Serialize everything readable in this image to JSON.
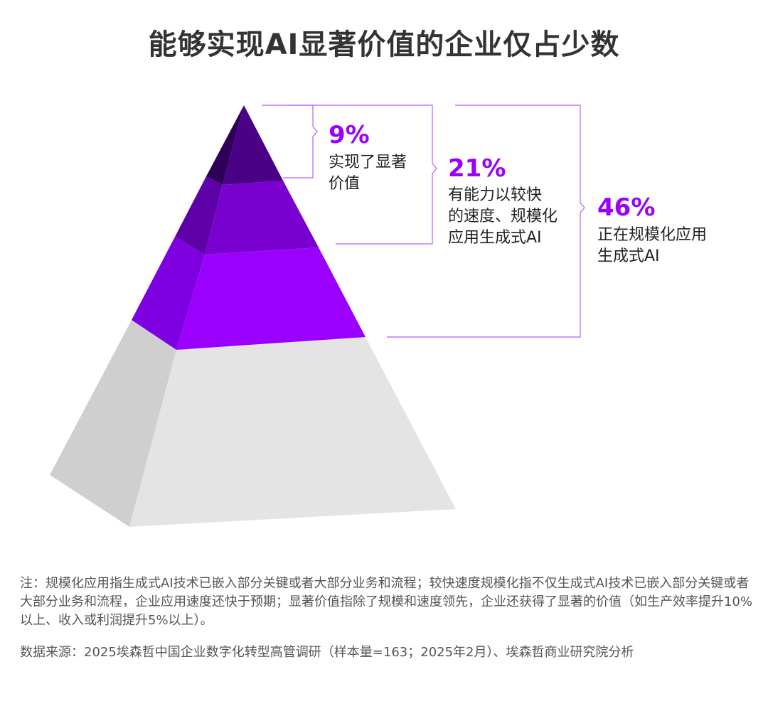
{
  "title": "能够实现AI显著价值的企业仅占少数",
  "levels": [
    {
      "percent": "9%",
      "description": [
        "实现了显著",
        "价值"
      ]
    },
    {
      "percent": "21%",
      "description": [
        "有能力以较快",
        "的速度、规模化",
        "应用生成式AI"
      ]
    },
    {
      "percent": "46%",
      "description": [
        "正在规模化应用",
        "生成式AI"
      ]
    }
  ],
  "colors": {
    "accent": "#9b00ff",
    "tier1_front": "#4a0087",
    "tier1_side": "#2f0058",
    "tier2_front": "#7a00cf",
    "tier2_side": "#5e00a8",
    "tier3_front": "#9b00ff",
    "tier3_side": "#7e00e0",
    "base_front": "#e4e4e4",
    "base_side": "#cfcfcf",
    "bracket": "#b85cff"
  },
  "note": "注：规模化应用指生成式AI技术已嵌入部分关键或者大部分业务和流程；较快速度规模化指不仅生成式AI技术已嵌入部分关键或者大部分业务和流程，企业应用速度还快于预期；显著价值指除了规模和速度领先，企业还获得了显著的价值（如生产效率提升10%以上、收入或利润提升5%以上）。",
  "source": "数据来源：2025埃森哲中国企业数字化转型高管调研（样本量=163；2025年2月）、埃森哲商业研究院分析"
}
